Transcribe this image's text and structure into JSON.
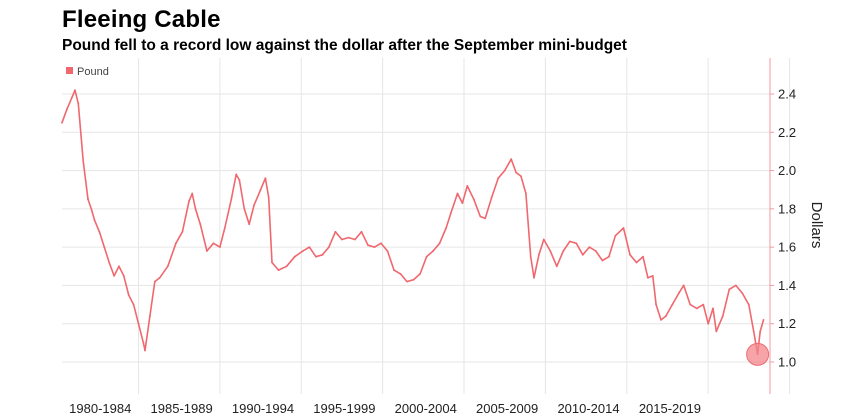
{
  "title": "Fleeing Cable",
  "subtitle": "Pound fell to a record low against the dollar after the September mini-budget",
  "chart_data": {
    "type": "line",
    "title": "Fleeing Cable",
    "subtitle": "Pound fell to a record low against the dollar after the September mini-budget",
    "ylabel": "Dollars",
    "xlabel": "",
    "categories": [
      "1980-1984",
      "1985-1989",
      "1990-1994",
      "1995-1999",
      "2000-2004",
      "2005-2009",
      "2010-2014",
      "2015-2019"
    ],
    "y_ticks": [
      1.0,
      1.2,
      1.4,
      1.6,
      1.8,
      2.0,
      2.2,
      2.4
    ],
    "ylim": [
      0.9,
      2.55
    ],
    "xlim": [
      1980,
      2023.5
    ],
    "grid": true,
    "legend": {
      "position": "top-left",
      "entries": [
        "Pound"
      ]
    },
    "color": "#f0686e",
    "highlight": {
      "x": 2022.74,
      "y": 1.04
    },
    "series": [
      {
        "name": "Pound",
        "x": [
          1980.0,
          1980.3,
          1980.6,
          1980.8,
          1981.0,
          1981.3,
          1981.6,
          1981.8,
          1982.0,
          1982.3,
          1982.6,
          1982.9,
          1983.2,
          1983.5,
          1983.8,
          1984.1,
          1984.4,
          1984.7,
          1985.0,
          1985.1,
          1985.4,
          1985.7,
          1986.0,
          1986.5,
          1987.0,
          1987.4,
          1987.8,
          1988.0,
          1988.2,
          1988.5,
          1988.9,
          1989.3,
          1989.7,
          1990.0,
          1990.4,
          1990.7,
          1990.9,
          1991.2,
          1991.5,
          1991.8,
          1992.2,
          1992.5,
          1992.7,
          1992.9,
          1993.3,
          1993.8,
          1994.3,
          1994.8,
          1995.2,
          1995.6,
          1996.0,
          1996.4,
          1996.8,
          1997.2,
          1997.6,
          1998.0,
          1998.4,
          1998.8,
          1999.2,
          1999.6,
          2000.0,
          2000.4,
          2000.8,
          2001.2,
          2001.6,
          2002.0,
          2002.4,
          2002.8,
          2003.2,
          2003.6,
          2003.9,
          2004.3,
          2004.6,
          2004.9,
          2005.3,
          2005.7,
          2006.0,
          2006.4,
          2006.8,
          2007.2,
          2007.6,
          2007.9,
          2008.2,
          2008.5,
          2008.8,
          2009.0,
          2009.3,
          2009.6,
          2010.0,
          2010.4,
          2010.8,
          2011.2,
          2011.6,
          2012.0,
          2012.4,
          2012.8,
          2013.2,
          2013.6,
          2014.0,
          2014.5,
          2014.9,
          2015.3,
          2015.7,
          2016.0,
          2016.3,
          2016.5,
          2016.8,
          2017.1,
          2017.5,
          2017.9,
          2018.2,
          2018.6,
          2019.0,
          2019.4,
          2019.7,
          2020.0,
          2020.2,
          2020.6,
          2021.0,
          2021.4,
          2021.8,
          2022.2,
          2022.5,
          2022.74,
          2022.9,
          2023.1
        ],
        "values": [
          2.25,
          2.32,
          2.38,
          2.42,
          2.35,
          2.05,
          1.85,
          1.8,
          1.74,
          1.68,
          1.6,
          1.52,
          1.45,
          1.5,
          1.45,
          1.35,
          1.3,
          1.2,
          1.1,
          1.06,
          1.24,
          1.42,
          1.44,
          1.5,
          1.62,
          1.68,
          1.84,
          1.88,
          1.8,
          1.72,
          1.58,
          1.62,
          1.6,
          1.7,
          1.85,
          1.98,
          1.95,
          1.8,
          1.72,
          1.82,
          1.9,
          1.96,
          1.86,
          1.52,
          1.48,
          1.5,
          1.55,
          1.58,
          1.6,
          1.55,
          1.56,
          1.6,
          1.68,
          1.64,
          1.65,
          1.64,
          1.68,
          1.61,
          1.6,
          1.62,
          1.58,
          1.48,
          1.46,
          1.42,
          1.43,
          1.46,
          1.55,
          1.58,
          1.62,
          1.7,
          1.78,
          1.88,
          1.83,
          1.92,
          1.85,
          1.76,
          1.75,
          1.86,
          1.96,
          2.0,
          2.06,
          1.99,
          1.97,
          1.88,
          1.55,
          1.44,
          1.56,
          1.64,
          1.58,
          1.5,
          1.58,
          1.63,
          1.62,
          1.56,
          1.6,
          1.58,
          1.53,
          1.55,
          1.66,
          1.7,
          1.56,
          1.52,
          1.55,
          1.44,
          1.45,
          1.3,
          1.22,
          1.24,
          1.3,
          1.36,
          1.4,
          1.3,
          1.28,
          1.3,
          1.2,
          1.28,
          1.16,
          1.24,
          1.38,
          1.4,
          1.36,
          1.3,
          1.16,
          1.04,
          1.16,
          1.22
        ]
      }
    ]
  }
}
